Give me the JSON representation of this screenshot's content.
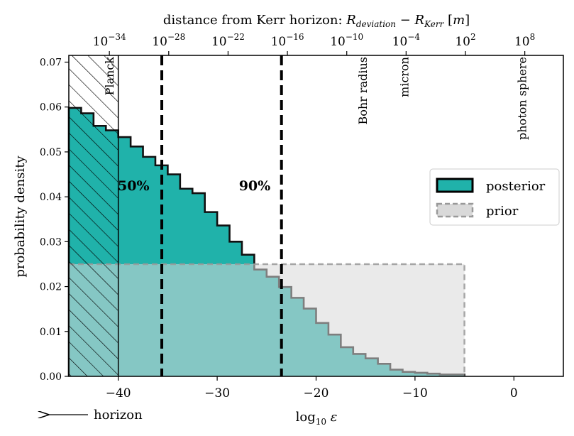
{
  "chart_data": {
    "type": "histogram",
    "xlabel": "log10 ε",
    "ylabel": "probability density",
    "top_axis_label": "distance from Kerr horizon: R_deviation − R_Kerr [m]",
    "xlim": [
      -45,
      5
    ],
    "ylim": [
      0,
      0.0715
    ],
    "x_ticks": [
      -40,
      -30,
      -20,
      -10,
      0
    ],
    "x_tick_labels": [
      "−40",
      "−30",
      "−20",
      "−10",
      "0"
    ],
    "y_ticks": [
      0,
      0.01,
      0.02,
      0.03,
      0.04,
      0.05,
      0.06,
      0.07
    ],
    "y_tick_labels": [
      "0.00",
      "0.01",
      "0.02",
      "0.03",
      "0.04",
      "0.05",
      "0.06",
      "0.07"
    ],
    "top_ticks": [
      {
        "x": -40.9,
        "base": "10",
        "exp": "−34"
      },
      {
        "x": -34.9,
        "base": "10",
        "exp": "−28"
      },
      {
        "x": -28.9,
        "base": "10",
        "exp": "−22"
      },
      {
        "x": -22.9,
        "base": "10",
        "exp": "−16"
      },
      {
        "x": -16.9,
        "base": "10",
        "exp": "−10"
      },
      {
        "x": -10.9,
        "base": "10",
        "exp": "−4"
      },
      {
        "x": -4.9,
        "base": "10",
        "exp": "2"
      },
      {
        "x": 1.1,
        "base": "10",
        "exp": "8"
      }
    ],
    "posterior": {
      "name": "posterior",
      "color": "#20b2aa",
      "bin_edges": [
        -45,
        -43.75,
        -42.5,
        -41.25,
        -40,
        -38.75,
        -37.5,
        -36.25,
        -35,
        -33.75,
        -32.5,
        -31.25,
        -30,
        -28.75,
        -27.5,
        -26.25,
        -25,
        -23.75,
        -22.5,
        -21.25,
        -20,
        -18.75,
        -17.5,
        -16.25,
        -15,
        -13.75,
        -12.5,
        -11.25,
        -10,
        -8.75,
        -7.5,
        -6.25,
        -5
      ],
      "values": [
        0.0598,
        0.0586,
        0.0558,
        0.0548,
        0.0533,
        0.0512,
        0.0489,
        0.047,
        0.045,
        0.0418,
        0.0408,
        0.0366,
        0.0336,
        0.03,
        0.0271,
        0.0238,
        0.0222,
        0.0199,
        0.0175,
        0.0151,
        0.0119,
        0.0093,
        0.0065,
        0.005,
        0.004,
        0.0028,
        0.0015,
        0.001,
        0.0008,
        0.0006,
        0.0004,
        0.0004
      ]
    },
    "prior": {
      "name": "prior",
      "color": "#d9d9d9",
      "edge_color": "#999999",
      "x_range": [
        -45,
        -5
      ],
      "value": 0.025
    },
    "hatched_region": [
      -45,
      -40
    ],
    "planck_line": -40,
    "percentile_lines": [
      {
        "label": "50%",
        "x": -35.6
      },
      {
        "label": "90%",
        "x": -23.5
      }
    ],
    "scale_annotations": [
      {
        "label": "Planck",
        "x": -40.9
      },
      {
        "label": "Bohr radius",
        "x": -15.3
      },
      {
        "label": "micron",
        "x": -11.1
      },
      {
        "label": "photon sphere",
        "x": 0.8
      }
    ],
    "legend_position": "center-right",
    "horizon_arrow_label": "horizon"
  }
}
